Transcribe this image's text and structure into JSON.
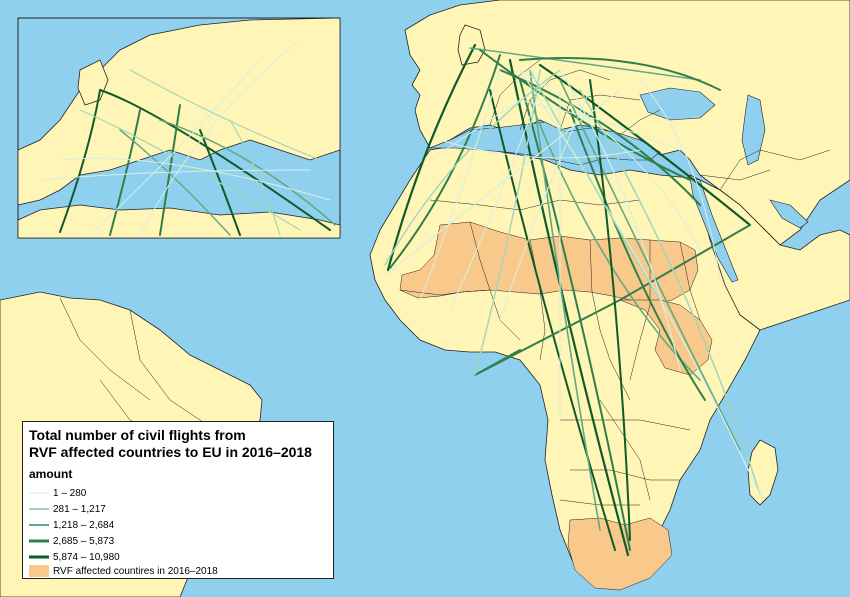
{
  "legend": {
    "title_line1": "Total number of civil flights from",
    "title_line2": "RVF affected countries to EU in 2016–2018",
    "subtitle": "amount",
    "classes": [
      {
        "label": "1 – 280",
        "color": "#d6f0e2",
        "weight": 1
      },
      {
        "label": "281 – 1,217",
        "color": "#9fd6bd",
        "weight": 2
      },
      {
        "label": "1,218 – 2,684",
        "color": "#62a881",
        "weight": 2
      },
      {
        "label": "2,685 – 5,873",
        "color": "#2f7f4a",
        "weight": 3
      },
      {
        "label": "5,874 – 10,980",
        "color": "#0f5a2a",
        "weight": 3
      }
    ],
    "area_label": "RVF affected countires in 2016–2018",
    "area_color": "#f8c98a"
  },
  "colors": {
    "sea": "#8fd0ef",
    "land": "#fff5b6",
    "border": "#222222"
  }
}
